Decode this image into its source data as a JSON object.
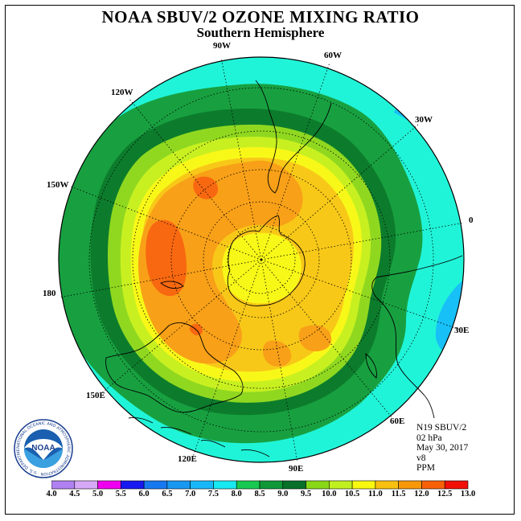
{
  "title": "NOAA SBUV/2 OZONE MIXING RATIO",
  "subtitle": "Southern Hemisphere",
  "longitude_labels": {
    "lon_90w": "90W",
    "lon_60w": "60W",
    "lon_120w": "120W",
    "lon_30w": "30W",
    "lon_150w": "150W",
    "lon_0": "0",
    "lon_180": "180",
    "lon_30e": "30E",
    "lon_150e": "150E",
    "lon_60e": "60E",
    "lon_120e": "120E",
    "lon_90e": "90E"
  },
  "info": {
    "satellite": "N19 SBUV/2",
    "pressure": "02 hPa",
    "date": "May 30, 2017",
    "version": "v8",
    "units": "PPM"
  },
  "logo": {
    "text": "NOAA",
    "ring_text": "NATIONAL OCEANIC AND ATMOSPHERIC ADMINISTRATION · U.S. DEPARTMENT OF COMMERCE"
  },
  "colorbar": {
    "ticks": [
      "4.0",
      "4.5",
      "5.0",
      "5.5",
      "6.0",
      "6.5",
      "7.0",
      "7.5",
      "8.0",
      "8.5",
      "9.0",
      "9.5",
      "10.0",
      "10.5",
      "11.0",
      "11.5",
      "12.0",
      "12.5",
      "13.0"
    ],
    "colors": [
      "#b080f0",
      "#d8a8f8",
      "#f000f0",
      "#1818f0",
      "#1878f0",
      "#1898f0",
      "#18b8f8",
      "#18e8f0",
      "#18c850",
      "#109838",
      "#087028",
      "#88d818",
      "#c0f020",
      "#f8f810",
      "#f8c010",
      "#f89808",
      "#f86008",
      "#f01008",
      "#885038"
    ]
  },
  "field_colors": {
    "range_7_5_8_0": "#20f4d8",
    "range_8_0_8_5": "#18a040",
    "range_8_5_9_0": "#0c7c2c",
    "range_9_0_9_5": "#90d820",
    "range_9_5_10_0": "#c8f020",
    "range_10_0_10_5": "#f8f818",
    "range_10_5_11_0": "#f8c818",
    "range_11_0_11_5": "#f8a018",
    "range_11_5_12_0": "#f86810",
    "range_7_0_7_5": "#18c0f8"
  }
}
